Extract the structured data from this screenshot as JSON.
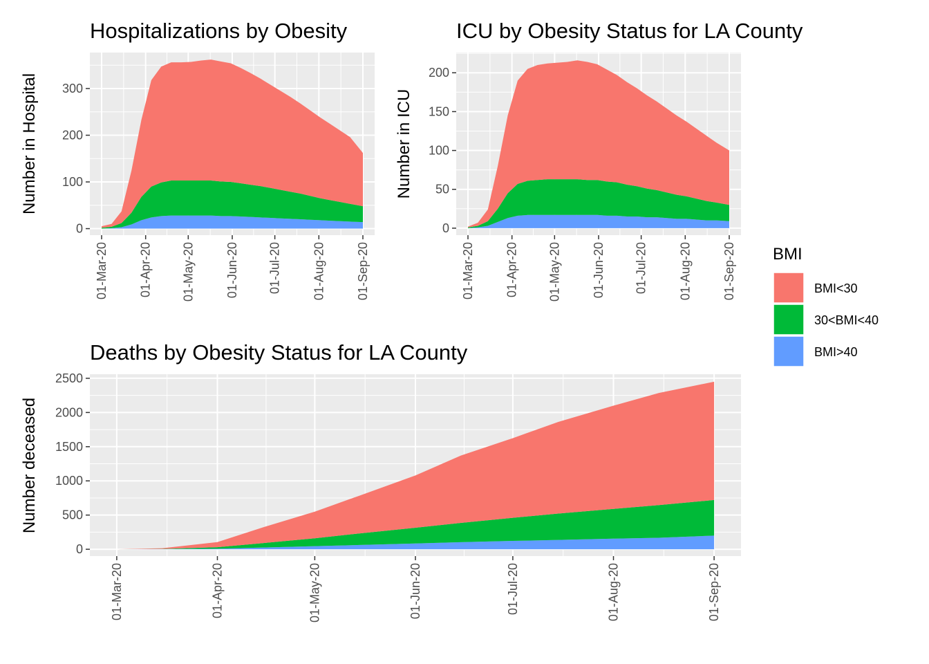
{
  "chart_data": [
    {
      "type": "area",
      "stacked": true,
      "title": "Hospitalizations by Obesity",
      "ylabel": "Number in Hospital",
      "xlabel": "",
      "x_tick_labels": [
        "01-Mar-20",
        "01-Apr-20",
        "01-May-20",
        "01-Jun-20",
        "01-Jul-20",
        "01-Aug-20",
        "01-Sep-20"
      ],
      "y_ticks": [
        0,
        100,
        200,
        300
      ],
      "ylim": [
        -14,
        377
      ],
      "x": [
        "2020-03-01",
        "2020-03-08",
        "2020-03-15",
        "2020-03-22",
        "2020-03-29",
        "2020-04-05",
        "2020-04-12",
        "2020-04-19",
        "2020-04-26",
        "2020-05-03",
        "2020-05-10",
        "2020-05-17",
        "2020-05-24",
        "2020-05-31",
        "2020-06-07",
        "2020-06-14",
        "2020-06-21",
        "2020-06-28",
        "2020-07-05",
        "2020-07-12",
        "2020-07-19",
        "2020-07-26",
        "2020-08-02",
        "2020-08-09",
        "2020-08-16",
        "2020-08-23",
        "2020-09-01"
      ],
      "series": [
        {
          "name": "BMI>40",
          "values": [
            0,
            1,
            3,
            9,
            18,
            24,
            27,
            28,
            28,
            28,
            28,
            28,
            27,
            27,
            26,
            25,
            24,
            23,
            22,
            21,
            20,
            19,
            18,
            17,
            16,
            15,
            14
          ]
        },
        {
          "name": "30<BMI<40",
          "values": [
            2,
            3,
            9,
            25,
            50,
            66,
            72,
            75,
            75,
            75,
            75,
            75,
            74,
            73,
            71,
            69,
            67,
            64,
            61,
            58,
            55,
            51,
            47,
            44,
            41,
            38,
            34
          ]
        },
        {
          "name": "BMI<30",
          "values": [
            3,
            6,
            25,
            90,
            165,
            228,
            248,
            253,
            253,
            254,
            257,
            259,
            257,
            254,
            247,
            239,
            230,
            221,
            212,
            203,
            193,
            183,
            173,
            163,
            153,
            143,
            114
          ]
        }
      ]
    },
    {
      "type": "area",
      "stacked": true,
      "title": "ICU by Obesity Status for LA County",
      "ylabel": "Number in ICU",
      "xlabel": "",
      "x_tick_labels": [
        "01-Mar-20",
        "01-Apr-20",
        "01-May-20",
        "01-Jun-20",
        "01-Jul-20",
        "01-Aug-20",
        "01-Sep-20"
      ],
      "y_ticks": [
        0,
        50,
        100,
        150,
        200
      ],
      "ylim": [
        -9,
        226
      ],
      "x": [
        "2020-03-01",
        "2020-03-08",
        "2020-03-15",
        "2020-03-22",
        "2020-03-29",
        "2020-04-05",
        "2020-04-12",
        "2020-04-19",
        "2020-04-26",
        "2020-05-03",
        "2020-05-10",
        "2020-05-17",
        "2020-05-24",
        "2020-05-31",
        "2020-06-07",
        "2020-06-14",
        "2020-06-21",
        "2020-06-28",
        "2020-07-05",
        "2020-07-12",
        "2020-07-19",
        "2020-07-26",
        "2020-08-02",
        "2020-08-09",
        "2020-08-16",
        "2020-08-23",
        "2020-09-01"
      ],
      "series": [
        {
          "name": "BMI>40",
          "values": [
            0,
            1,
            3,
            8,
            13,
            16,
            17,
            17,
            17,
            17,
            17,
            17,
            17,
            17,
            16,
            16,
            15,
            15,
            14,
            14,
            13,
            12,
            12,
            11,
            10,
            10,
            9
          ]
        },
        {
          "name": "30<BMI<40",
          "values": [
            1,
            2,
            6,
            17,
            32,
            41,
            44,
            45,
            46,
            46,
            46,
            46,
            45,
            45,
            44,
            43,
            41,
            39,
            37,
            35,
            33,
            31,
            29,
            27,
            25,
            23,
            21
          ]
        },
        {
          "name": "BMI<30",
          "values": [
            1,
            4,
            15,
            55,
            100,
            133,
            144,
            148,
            149,
            150,
            151,
            153,
            152,
            149,
            144,
            138,
            132,
            126,
            120,
            114,
            108,
            102,
            96,
            90,
            84,
            77,
            70
          ]
        }
      ]
    },
    {
      "type": "area",
      "stacked": true,
      "title": "Deaths by Obesity Status for LA County",
      "ylabel": "Number deceased",
      "xlabel": "",
      "x_tick_labels": [
        "01-Mar-20",
        "01-Apr-20",
        "01-May-20",
        "01-Jun-20",
        "01-Jul-20",
        "01-Aug-20",
        "01-Sep-20"
      ],
      "y_ticks": [
        0,
        500,
        1000,
        1500,
        2000,
        2500
      ],
      "ylim": [
        -100,
        2560
      ],
      "x": [
        "2020-03-01",
        "2020-03-15",
        "2020-04-01",
        "2020-04-15",
        "2020-05-01",
        "2020-05-15",
        "2020-06-01",
        "2020-06-15",
        "2020-07-01",
        "2020-07-15",
        "2020-08-01",
        "2020-08-15",
        "2020-09-01"
      ],
      "series": [
        {
          "name": "BMI>40",
          "values": [
            0,
            2,
            8,
            25,
            45,
            63,
            85,
            103,
            122,
            137,
            155,
            168,
            200
          ]
        },
        {
          "name": "30<BMI<40",
          "values": [
            0,
            3,
            22,
            65,
            115,
            170,
            230,
            282,
            338,
            385,
            435,
            478,
            520
          ]
        },
        {
          "name": "BMI<30",
          "values": [
            0,
            10,
            75,
            230,
            390,
            555,
            765,
            985,
            1165,
            1340,
            1510,
            1640,
            1730
          ]
        }
      ]
    }
  ],
  "legend": {
    "title": "BMI",
    "items": [
      {
        "label": "BMI<30",
        "color": "#F8766D"
      },
      {
        "label": "30<BMI<40",
        "color": "#00BA38"
      },
      {
        "label": "BMI>40",
        "color": "#619CFF"
      }
    ]
  },
  "colors": {
    "panel_background": "#EBEBEB",
    "grid": "#FFFFFF",
    "BMI<30": "#F8766D",
    "30<BMI<40": "#00BA38",
    "BMI>40": "#619CFF"
  }
}
